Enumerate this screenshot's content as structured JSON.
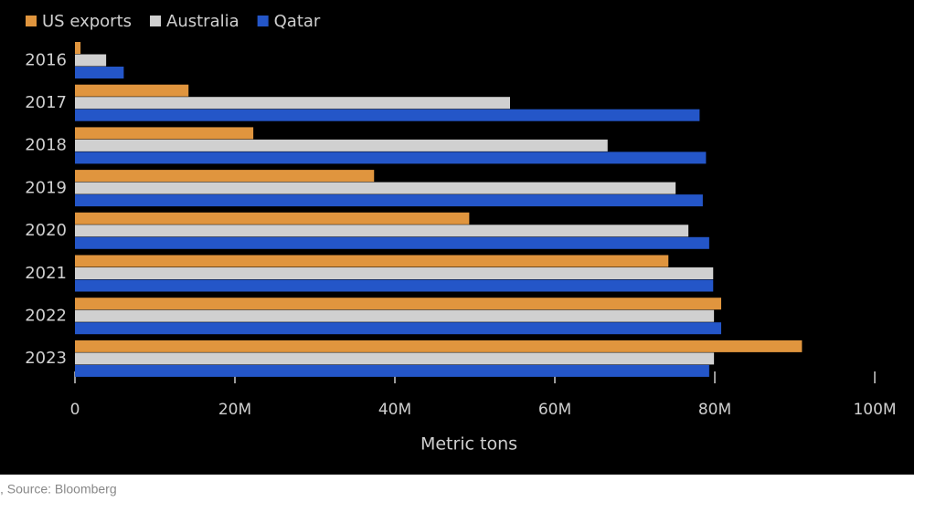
{
  "chart_data": {
    "type": "hbar",
    "categories": [
      "2016",
      "2017",
      "2018",
      "2019",
      "2020",
      "2021",
      "2022",
      "2023"
    ],
    "series": [
      {
        "name": "US exports",
        "color": "#e0953e",
        "values": [
          700000,
          14200000,
          22300000,
          37400000,
          49300000,
          74200000,
          80800000,
          90900000
        ]
      },
      {
        "name": "Australia",
        "color": "#d0d0d0",
        "values": [
          3900000,
          54400000,
          66600000,
          75100000,
          76700000,
          79800000,
          79900000,
          79900000
        ]
      },
      {
        "name": "Qatar",
        "color": "#2456c8",
        "values": [
          6100000,
          78100000,
          78900000,
          78500000,
          79300000,
          79800000,
          80800000,
          79300000
        ]
      }
    ],
    "xlabel": "Metric tons",
    "xlim": [
      0,
      100000000
    ],
    "xticks": [
      0,
      {
        "value": 20000000,
        "label": "20M"
      },
      {
        "value": 40000000,
        "label": "40M"
      },
      {
        "value": 60000000,
        "label": "60M"
      },
      {
        "value": 80000000,
        "label": "80M"
      },
      {
        "value": 100000000,
        "label": "100M"
      }
    ],
    "legend": "top-left",
    "source": ", Source: Bloomberg"
  }
}
